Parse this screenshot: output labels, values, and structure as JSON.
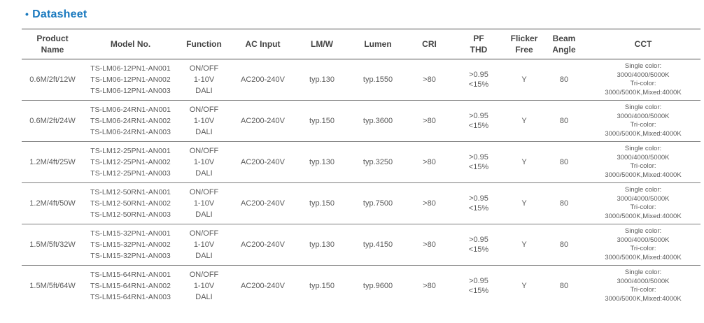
{
  "header": {
    "bullet": "•",
    "title": "Datasheet",
    "accent_color": "#1878be"
  },
  "table": {
    "columns": [
      {
        "key": "product_name",
        "lines": [
          "Product",
          "Name"
        ]
      },
      {
        "key": "models",
        "lines": [
          "Model No."
        ]
      },
      {
        "key": "functions",
        "lines": [
          "Function"
        ]
      },
      {
        "key": "ac_input",
        "lines": [
          "AC Input"
        ]
      },
      {
        "key": "lm_w",
        "lines": [
          "LM/W"
        ]
      },
      {
        "key": "lumen",
        "lines": [
          "Lumen"
        ]
      },
      {
        "key": "cri",
        "lines": [
          "CRI"
        ]
      },
      {
        "key": "pf_thd",
        "lines": [
          "PF",
          "THD"
        ]
      },
      {
        "key": "flicker_free",
        "lines": [
          "Flicker",
          "Free"
        ]
      },
      {
        "key": "beam_angle",
        "lines": [
          "Beam",
          "Angle"
        ]
      },
      {
        "key": "cct",
        "lines": [
          "CCT"
        ]
      }
    ],
    "rows": [
      {
        "product_name": "0.6M/2ft/12W",
        "models": [
          "TS-LM06-12PN1-AN001",
          "TS-LM06-12PN1-AN002",
          "TS-LM06-12PN1-AN003"
        ],
        "functions": [
          "ON/OFF",
          "1-10V",
          "DALI"
        ],
        "ac_input": "AC200-240V",
        "lm_w": "typ.130",
        "lumen": "typ.1550",
        "cri": ">80",
        "pf_thd": [
          ">0.95",
          "<15%"
        ],
        "flicker_free": "Y",
        "beam_angle": "80",
        "cct": [
          "Single color:",
          "3000/4000/5000K",
          "Tri-color:",
          "3000/5000K,Mixed:4000K"
        ]
      },
      {
        "product_name": "0.6M/2ft/24W",
        "models": [
          "TS-LM06-24RN1-AN001",
          "TS-LM06-24RN1-AN002",
          "TS-LM06-24RN1-AN003"
        ],
        "functions": [
          "ON/OFF",
          "1-10V",
          "DALI"
        ],
        "ac_input": "AC200-240V",
        "lm_w": "typ.150",
        "lumen": "typ.3600",
        "cri": ">80",
        "pf_thd": [
          ">0.95",
          "<15%"
        ],
        "flicker_free": "Y",
        "beam_angle": "80",
        "cct": [
          "Single color:",
          "3000/4000/5000K",
          "Tri-color:",
          "3000/5000K,Mixed:4000K"
        ]
      },
      {
        "product_name": "1.2M/4ft/25W",
        "models": [
          "TS-LM12-25PN1-AN001",
          "TS-LM12-25PN1-AN002",
          "TS-LM12-25PN1-AN003"
        ],
        "functions": [
          "ON/OFF",
          "1-10V",
          "DALI"
        ],
        "ac_input": "AC200-240V",
        "lm_w": "typ.130",
        "lumen": "typ.3250",
        "cri": ">80",
        "pf_thd": [
          ">0.95",
          "<15%"
        ],
        "flicker_free": "Y",
        "beam_angle": "80",
        "cct": [
          "Single color:",
          "3000/4000/5000K",
          "Tri-color:",
          "3000/5000K,Mixed:4000K"
        ]
      },
      {
        "product_name": "1.2M/4ft/50W",
        "models": [
          "TS-LM12-50RN1-AN001",
          "TS-LM12-50RN1-AN002",
          "TS-LM12-50RN1-AN003"
        ],
        "functions": [
          "ON/OFF",
          "1-10V",
          "DALI"
        ],
        "ac_input": "AC200-240V",
        "lm_w": "typ.150",
        "lumen": "typ.7500",
        "cri": ">80",
        "pf_thd": [
          ">0.95",
          "<15%"
        ],
        "flicker_free": "Y",
        "beam_angle": "80",
        "cct": [
          "Single color:",
          "3000/4000/5000K",
          "Tri-color:",
          "3000/5000K,Mixed:4000K"
        ]
      },
      {
        "product_name": "1.5M/5ft/32W",
        "models": [
          "TS-LM15-32PN1-AN001",
          "TS-LM15-32PN1-AN002",
          "TS-LM15-32PN1-AN003"
        ],
        "functions": [
          "ON/OFF",
          "1-10V",
          "DALI"
        ],
        "ac_input": "AC200-240V",
        "lm_w": "typ.130",
        "lumen": "typ.4150",
        "cri": ">80",
        "pf_thd": [
          ">0.95",
          "<15%"
        ],
        "flicker_free": "Y",
        "beam_angle": "80",
        "cct": [
          "Single color:",
          "3000/4000/5000K",
          "Tri-color:",
          "3000/5000K,Mixed:4000K"
        ]
      },
      {
        "product_name": "1.5M/5ft/64W",
        "models": [
          "TS-LM15-64RN1-AN001",
          "TS-LM15-64RN1-AN002",
          "TS-LM15-64RN1-AN003"
        ],
        "functions": [
          "ON/OFF",
          "1-10V",
          "DALI"
        ],
        "ac_input": "AC200-240V",
        "lm_w": "typ.150",
        "lumen": "typ.9600",
        "cri": ">80",
        "pf_thd": [
          ">0.95",
          "<15%"
        ],
        "flicker_free": "Y",
        "beam_angle": "80",
        "cct": [
          "Single color:",
          "3000/4000/5000K",
          "Tri-color:",
          "3000/5000K,Mixed:4000K"
        ]
      }
    ]
  }
}
